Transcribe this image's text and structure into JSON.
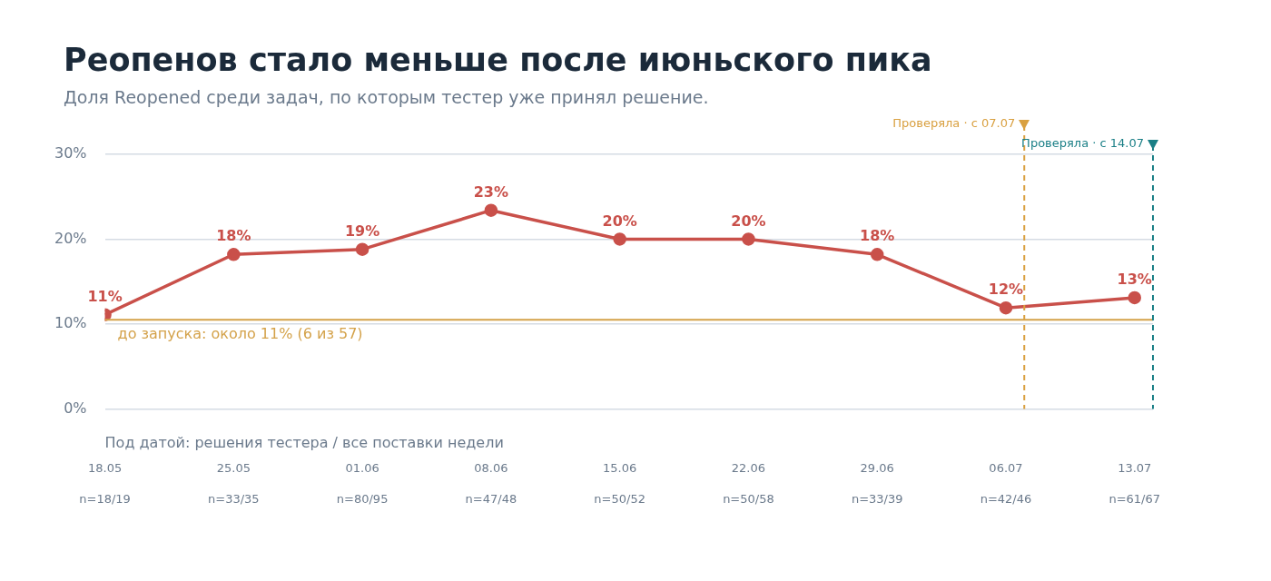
{
  "chart_data": {
    "type": "line",
    "title": "Реопенов стало меньше после июньского пика",
    "subtitle": "Доля Reopened среди задач, по которым тестер уже принял решение.",
    "x": [
      "--05-18",
      "--05-25",
      "--06-01",
      "--06-08",
      "--06-15",
      "--06-22",
      "--06-29",
      "--07-06",
      "--07-13"
    ],
    "series": [
      {
        "color": "#c9504a",
        "values": [
          11.1,
          18.2,
          18.8,
          23.4,
          20,
          20,
          18.2,
          11.9,
          13.1
        ],
        "value_labels": [
          "11%",
          "18%",
          "19%",
          "23%",
          "20%",
          "20%",
          "18%",
          "12%",
          "13%"
        ]
      }
    ],
    "xlim": [
      "--05-18",
      "--07-14"
    ],
    "xticks": [
      {
        "value": "--05-18",
        "label": "18.05"
      },
      {
        "value": "--05-25",
        "label": "25.05"
      },
      {
        "value": "--06-01",
        "label": "01.06"
      },
      {
        "value": "--06-08",
        "label": "08.06"
      },
      {
        "value": "--06-15",
        "label": "15.06"
      },
      {
        "value": "--06-22",
        "label": "22.06"
      },
      {
        "value": "--06-29",
        "label": "29.06"
      },
      {
        "value": "--07-06",
        "label": "06.07"
      },
      {
        "value": "--07-13",
        "label": "13.07"
      }
    ],
    "ylim": [
      0,
      30
    ],
    "yticks": [
      {
        "value": 0,
        "label": "0%"
      },
      {
        "value": 10,
        "label": "10%"
      },
      {
        "value": 20,
        "label": "20%"
      },
      {
        "value": 30,
        "label": "30%"
      }
    ],
    "grid": "y",
    "legend": false,
    "marker": "circle",
    "line_style": "solid",
    "ref_lines": [
      {
        "axis": "y",
        "value": 10.5,
        "label": "до запуска: около 11% (6 из 57)",
        "color": "#d4a24a",
        "line_style": "solid"
      },
      {
        "axis": "x",
        "value": "--07-07",
        "label": "Проверяла · с 07.07",
        "color": "#d9a040",
        "line_style": "dashed"
      },
      {
        "axis": "x",
        "value": "--07-14",
        "label": "Проверяла · с 14.07",
        "color": "#1a7f86",
        "line_style": "dashed"
      }
    ],
    "annotations": [
      "Под датой: решения тестера / все поставки недели",
      "n=18/19",
      "n=33/35",
      "n=80/95",
      "n=47/48",
      "n=50/52",
      "n=50/58",
      "n=33/39",
      "n=42/46",
      "n=61/67"
    ]
  }
}
